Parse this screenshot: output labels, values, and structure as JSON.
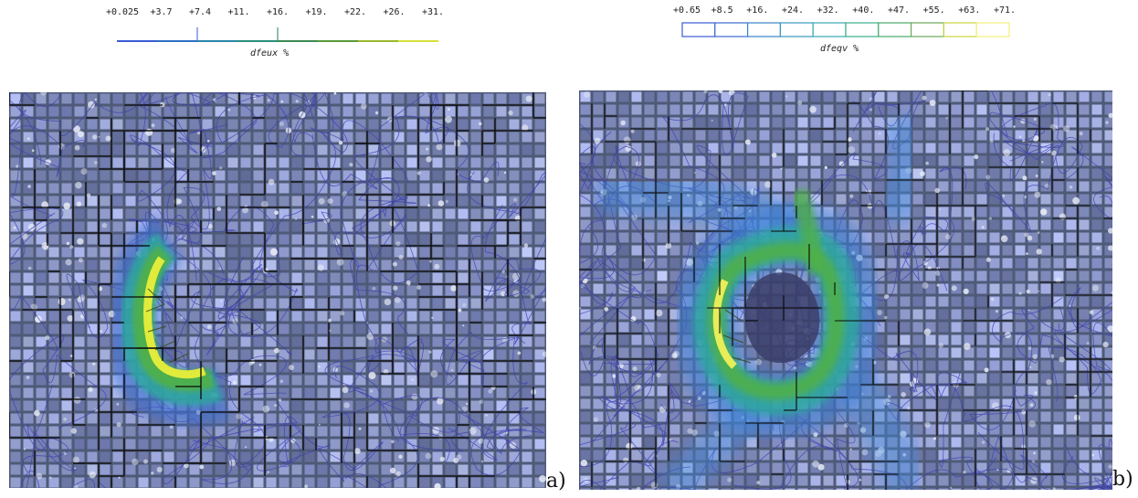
{
  "figure": {
    "left_panel": {
      "colorbar": {
        "tick_labels": [
          "+0.025",
          "+3.7",
          "+7.4",
          "+11.",
          "+16.",
          "+19.",
          "+22.",
          "+26.",
          "+31."
        ],
        "variable_label": "dfeux %",
        "colors": [
          "#3a5bd4",
          "#2e6fc2",
          "#2a86a8",
          "#2a8f7a",
          "#3a8a52",
          "#5a9a3a",
          "#9ab82e",
          "#d6e03a"
        ]
      },
      "panel_label": "a)"
    },
    "right_panel": {
      "colorbar": {
        "tick_labels": [
          "+0.65",
          "+8.5",
          "+16.",
          "+24.",
          "+32.",
          "+40.",
          "+47.",
          "+55.",
          "+63.",
          "+71."
        ],
        "variable_label": "dfeqv %",
        "colors": [
          "#3a5bd4",
          "#3b6bd0",
          "#3a83c8",
          "#3a98be",
          "#3aa8b0",
          "#3aae8c",
          "#4aa86c",
          "#6aa85a",
          "#c8d440",
          "#f2f07a"
        ]
      },
      "panel_label": "b)"
    }
  }
}
